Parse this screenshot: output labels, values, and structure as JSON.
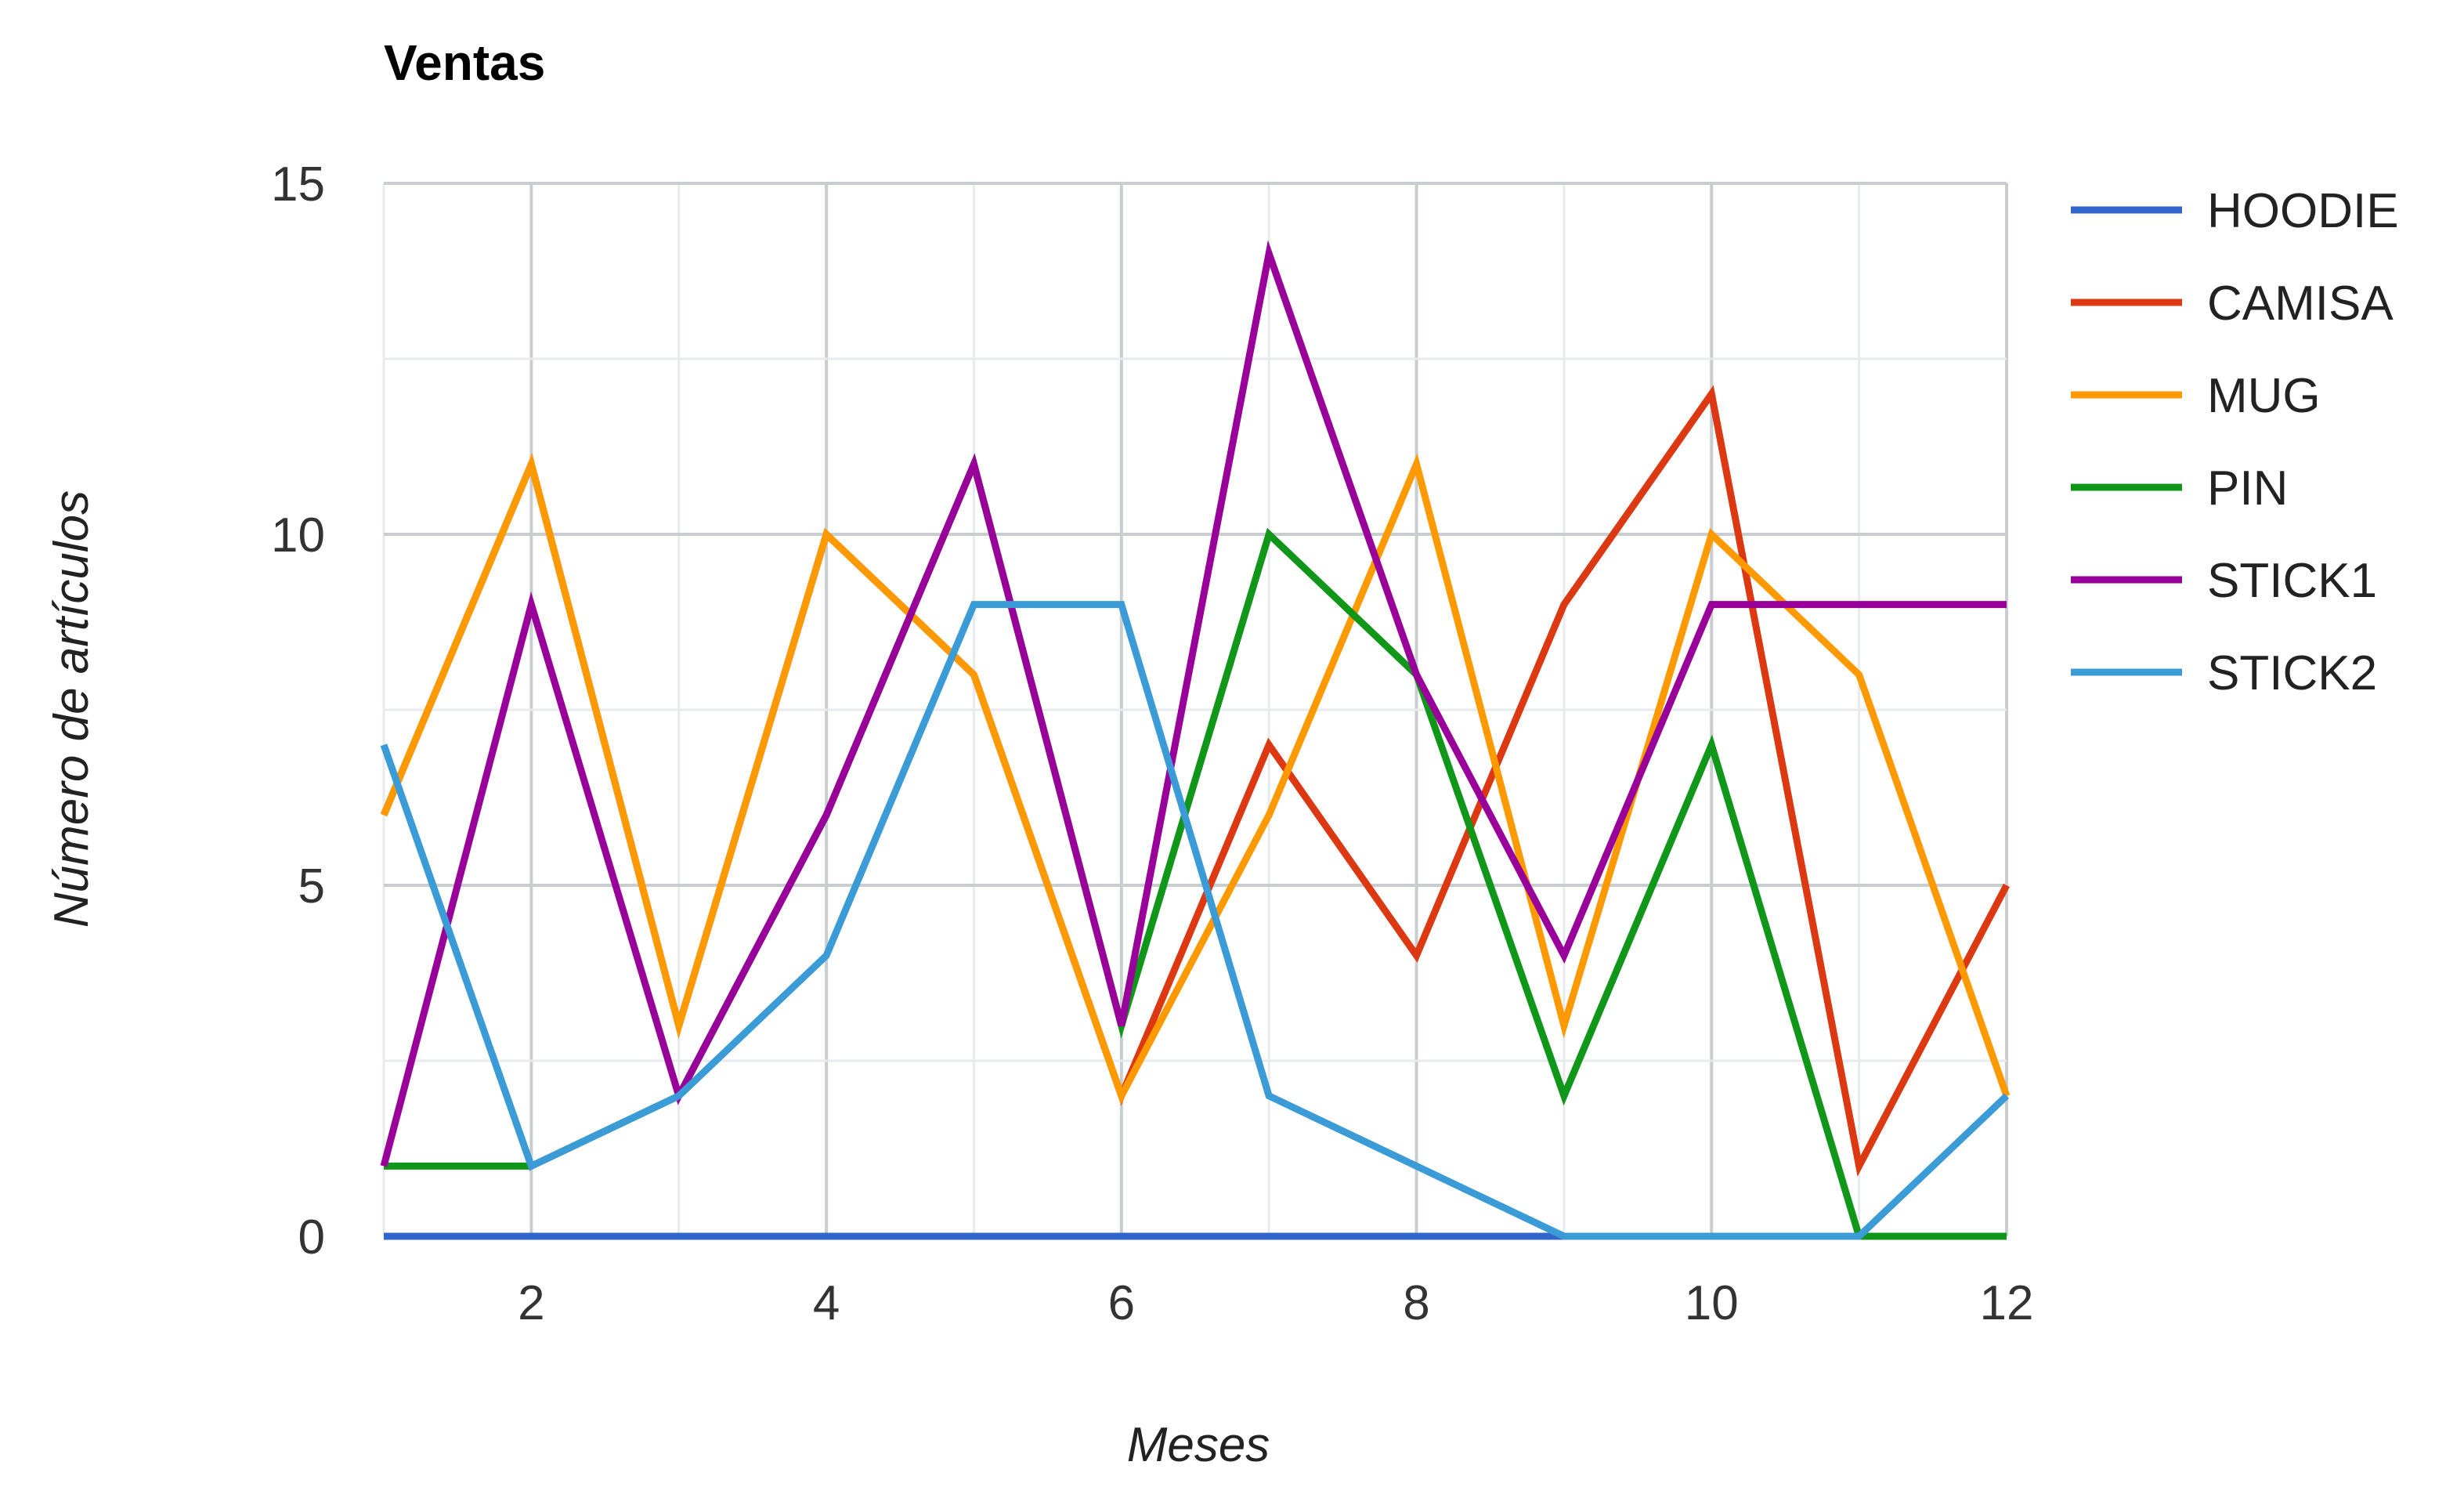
{
  "chart_data": {
    "type": "line",
    "title": "Ventas",
    "xlabel": "Meses",
    "ylabel": "Número de artículos",
    "x": [
      1,
      2,
      3,
      4,
      5,
      6,
      7,
      8,
      9,
      10,
      11,
      12
    ],
    "xlim": [
      1,
      12
    ],
    "ylim": [
      0,
      15
    ],
    "x_ticks": [
      "2",
      "4",
      "6",
      "8",
      "10",
      "12"
    ],
    "y_ticks": [
      "0",
      "5",
      "10",
      "15"
    ],
    "grid": true,
    "legend_position": "right",
    "series": [
      {
        "name": "HOODIE",
        "color": "#3366cc",
        "values": [
          0,
          0,
          0,
          0,
          0,
          0,
          0,
          0,
          0,
          0,
          0,
          0
        ]
      },
      {
        "name": "CAMISA",
        "color": "#dc3912",
        "values": [
          6,
          11,
          3,
          10,
          8,
          2,
          7,
          4,
          9,
          12,
          1,
          5
        ]
      },
      {
        "name": "MUG",
        "color": "#ff9900",
        "values": [
          6,
          11,
          3,
          10,
          8,
          2,
          6,
          11,
          3,
          10,
          8,
          2
        ]
      },
      {
        "name": "PIN",
        "color": "#109618",
        "values": [
          1,
          1,
          2,
          6,
          11,
          3,
          10,
          8,
          2,
          7,
          0,
          0
        ]
      },
      {
        "name": "STICK1",
        "color": "#990099",
        "values": [
          1,
          9,
          2,
          6,
          11,
          3,
          14,
          8,
          4,
          9,
          9,
          9
        ]
      },
      {
        "name": "STICK2",
        "color": "#3b9bd6",
        "values": [
          7,
          1,
          2,
          4,
          9,
          9,
          2,
          1,
          0,
          0,
          0,
          2
        ]
      }
    ]
  }
}
